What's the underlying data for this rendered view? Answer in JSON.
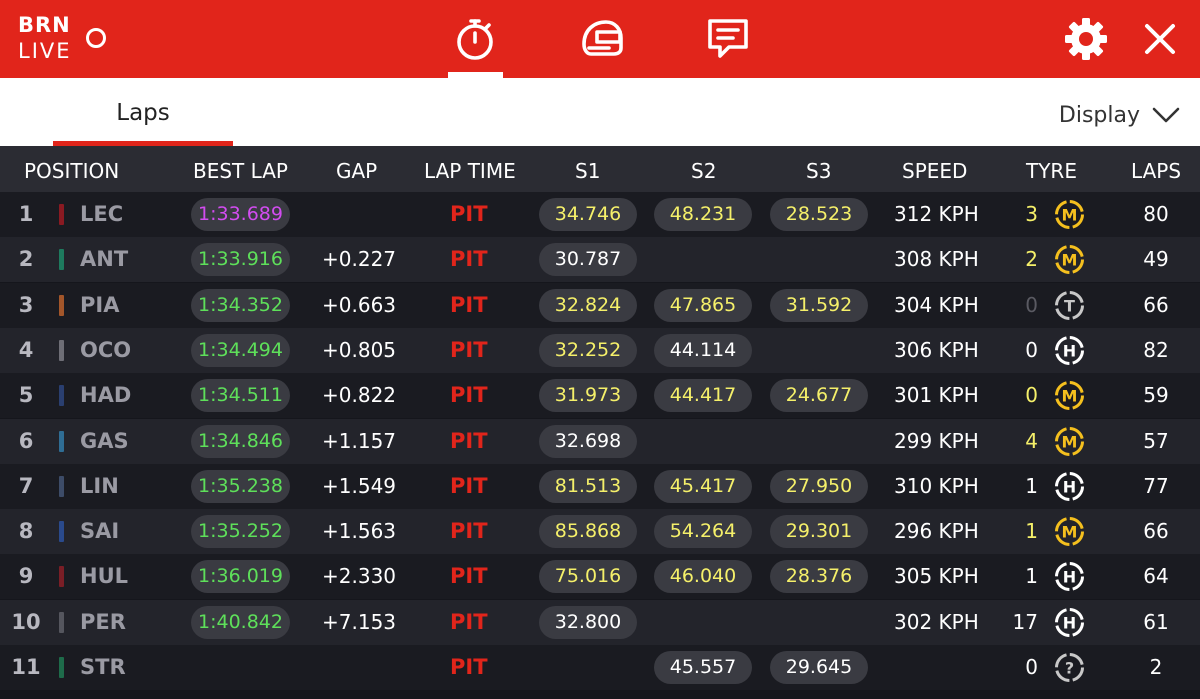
{
  "app": {
    "brand_line1": "BRN",
    "brand_line2": "LIVE",
    "accent": "#e1251b"
  },
  "nav": {
    "icons": [
      "stopwatch-icon",
      "helmet-icon",
      "chat-icon"
    ],
    "active": "stopwatch-icon",
    "right_icons": [
      "gear-icon",
      "close-icon"
    ]
  },
  "tabs": {
    "laps": "Laps",
    "display": "Display"
  },
  "headers": {
    "position": "POSITION",
    "best_lap": "BEST LAP",
    "gap": "GAP",
    "lap_time": "LAP TIME",
    "s1": "S1",
    "s2": "S2",
    "s3": "S3",
    "speed": "SPEED",
    "tyre": "TYRE",
    "laps": "LAPS"
  },
  "colors": {
    "purple": "#d24cf0",
    "green": "#5ee05a",
    "yellow": "#f5f06a",
    "white": "#ffffff",
    "tyre_medium": "#f5c01e",
    "tyre_hard": "#ffffff",
    "tyre_other": "#c8c8c8"
  },
  "rows": [
    {
      "pos": "1",
      "code": "LEC",
      "team_color": "#8a1a22",
      "best": "1:33.689",
      "best_color": "purple",
      "gap": "",
      "lap_time": "PIT",
      "s1": "34.746",
      "s1c": "yellow",
      "s2": "48.231",
      "s2c": "yellow",
      "s3": "28.523",
      "s3c": "yellow",
      "speed": "312 KPH",
      "tyre_count": "3",
      "tyre_count_color": "yellow",
      "tyre": "M",
      "laps": "80"
    },
    {
      "pos": "2",
      "code": "ANT",
      "team_color": "#1e7a5e",
      "best": "1:33.916",
      "best_color": "green",
      "gap": "+0.227",
      "lap_time": "PIT",
      "s1": "30.787",
      "s1c": "white",
      "s2": "",
      "s2c": "white",
      "s3": "",
      "s3c": "white",
      "speed": "308 KPH",
      "tyre_count": "2",
      "tyre_count_color": "yellow",
      "tyre": "M",
      "laps": "49"
    },
    {
      "pos": "3",
      "code": "PIA",
      "team_color": "#a3562a",
      "best": "1:34.352",
      "best_color": "green",
      "gap": "+0.663",
      "lap_time": "PIT",
      "s1": "32.824",
      "s1c": "yellow",
      "s2": "47.865",
      "s2c": "yellow",
      "s3": "31.592",
      "s3c": "yellow",
      "speed": "304 KPH",
      "tyre_count": "0",
      "tyre_count_color": "dim",
      "tyre": "T",
      "laps": "66"
    },
    {
      "pos": "4",
      "code": "OCO",
      "team_color": "#6e6e76",
      "best": "1:34.494",
      "best_color": "green",
      "gap": "+0.805",
      "lap_time": "PIT",
      "s1": "32.252",
      "s1c": "yellow",
      "s2": "44.114",
      "s2c": "white",
      "s3": "",
      "s3c": "white",
      "speed": "306 KPH",
      "tyre_count": "0",
      "tyre_count_color": "white",
      "tyre": "H",
      "laps": "82"
    },
    {
      "pos": "5",
      "code": "HAD",
      "team_color": "#2a3f70",
      "best": "1:34.511",
      "best_color": "green",
      "gap": "+0.822",
      "lap_time": "PIT",
      "s1": "31.973",
      "s1c": "yellow",
      "s2": "44.417",
      "s2c": "yellow",
      "s3": "24.677",
      "s3c": "yellow",
      "speed": "301 KPH",
      "tyre_count": "0",
      "tyre_count_color": "yellow",
      "tyre": "M",
      "laps": "59"
    },
    {
      "pos": "6",
      "code": "GAS",
      "team_color": "#2f6d94",
      "best": "1:34.846",
      "best_color": "green",
      "gap": "+1.157",
      "lap_time": "PIT",
      "s1": "32.698",
      "s1c": "white",
      "s2": "",
      "s2c": "white",
      "s3": "",
      "s3c": "white",
      "speed": "299 KPH",
      "tyre_count": "4",
      "tyre_count_color": "yellow",
      "tyre": "M",
      "laps": "57"
    },
    {
      "pos": "7",
      "code": "LIN",
      "team_color": "#3d4c68",
      "best": "1:35.238",
      "best_color": "green",
      "gap": "+1.549",
      "lap_time": "PIT",
      "s1": "81.513",
      "s1c": "yellow",
      "s2": "45.417",
      "s2c": "yellow",
      "s3": "27.950",
      "s3c": "yellow",
      "speed": "310 KPH",
      "tyre_count": "1",
      "tyre_count_color": "white",
      "tyre": "H",
      "laps": "77"
    },
    {
      "pos": "8",
      "code": "SAI",
      "team_color": "#2a4a8c",
      "best": "1:35.252",
      "best_color": "green",
      "gap": "+1.563",
      "lap_time": "PIT",
      "s1": "85.868",
      "s1c": "yellow",
      "s2": "54.264",
      "s2c": "yellow",
      "s3": "29.301",
      "s3c": "yellow",
      "speed": "296 KPH",
      "tyre_count": "1",
      "tyre_count_color": "yellow",
      "tyre": "M",
      "laps": "66"
    },
    {
      "pos": "9",
      "code": "HUL",
      "team_color": "#7a1e26",
      "best": "1:36.019",
      "best_color": "green",
      "gap": "+2.330",
      "lap_time": "PIT",
      "s1": "75.016",
      "s1c": "yellow",
      "s2": "46.040",
      "s2c": "yellow",
      "s3": "28.376",
      "s3c": "yellow",
      "speed": "305 KPH",
      "tyre_count": "1",
      "tyre_count_color": "white",
      "tyre": "H",
      "laps": "64"
    },
    {
      "pos": "10",
      "code": "PER",
      "team_color": "#55565e",
      "best": "1:40.842",
      "best_color": "green",
      "gap": "+7.153",
      "lap_time": "PIT",
      "s1": "32.800",
      "s1c": "white",
      "s2": "",
      "s2c": "white",
      "s3": "",
      "s3c": "white",
      "speed": "302 KPH",
      "tyre_count": "17",
      "tyre_count_color": "white",
      "tyre": "H",
      "laps": "61"
    },
    {
      "pos": "11",
      "code": "STR",
      "team_color": "#1e6b4a",
      "best": "",
      "best_color": "green",
      "gap": "",
      "lap_time": "PIT",
      "s1": "",
      "s1c": "white",
      "s2": "45.557",
      "s2c": "white",
      "s3": "29.645",
      "s3c": "white",
      "speed": "",
      "tyre_count": "0",
      "tyre_count_color": "white",
      "tyre": "?",
      "laps": "2"
    }
  ]
}
